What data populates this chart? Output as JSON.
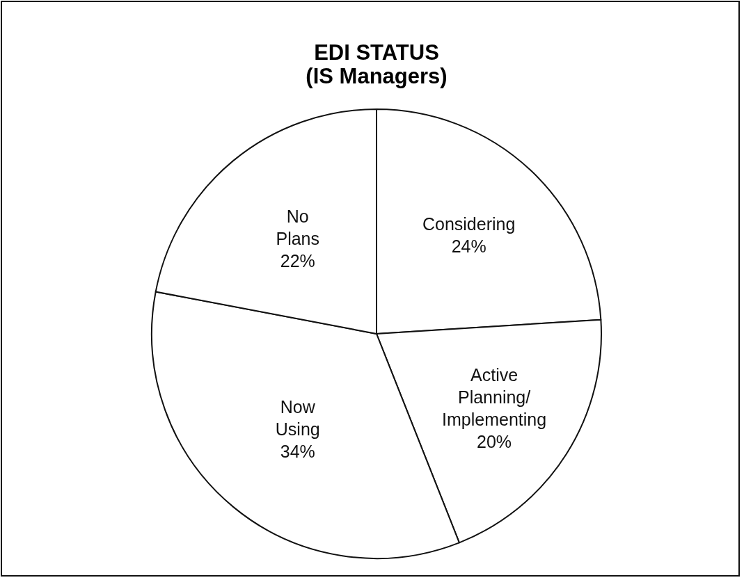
{
  "chart_data": {
    "type": "pie",
    "title": "EDI STATUS",
    "subtitle": "(IS Managers)",
    "categories": [
      "Considering",
      "Active Planning/Implementing",
      "Now Using",
      "No Plans"
    ],
    "values": [
      24,
      20,
      34,
      22
    ],
    "value_labels": [
      "24%",
      "20%",
      "34%",
      "22%"
    ],
    "colors": [
      "#ffffff",
      "#ffffff",
      "#ffffff",
      "#ffffff"
    ]
  }
}
